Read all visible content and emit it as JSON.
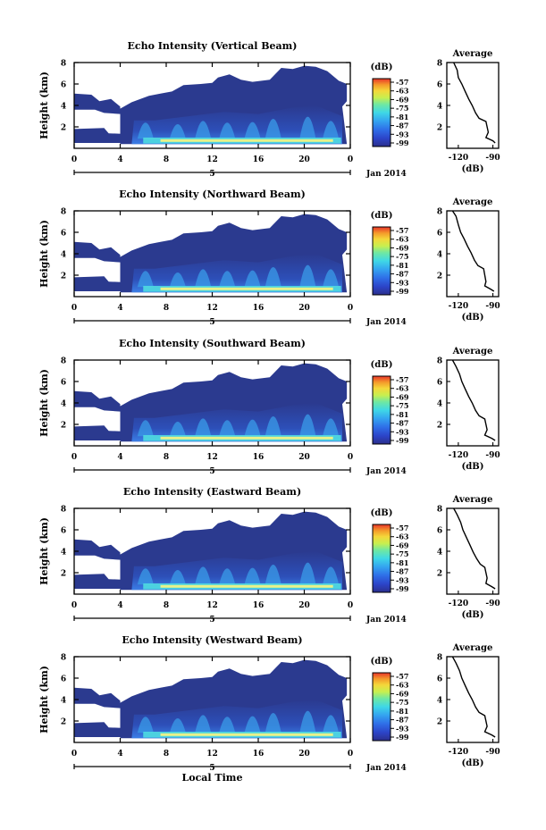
{
  "chart_data": [
    {
      "type": "heatmap",
      "title": "Echo Intensity (Vertical Beam)",
      "ylabel": "Height (km)",
      "xlim": [
        0,
        24
      ],
      "ylim": [
        0,
        8
      ],
      "xticks": [
        "0",
        "4",
        "8",
        "12",
        "16",
        "20",
        "0"
      ],
      "yticks": [
        "2",
        "4",
        "6",
        "8"
      ],
      "date_marker": "5",
      "date_label": "Jan 2014",
      "colorbar": {
        "unit": "(dB)",
        "ticks": [
          "-57",
          "-63",
          "-69",
          "-75",
          "-81",
          "-87",
          "-93",
          "-99"
        ]
      },
      "profile": {
        "title": "Average",
        "xlabel": "(dB)",
        "xticks": [
          "-120",
          "-90"
        ],
        "xlim": [
          -130,
          -85
        ],
        "points": [
          [
            -124,
            8.0
          ],
          [
            -121,
            7.3
          ],
          [
            -120,
            6.6
          ],
          [
            -117,
            6.0
          ],
          [
            -114,
            5.3
          ],
          [
            -111,
            4.6
          ],
          [
            -108,
            4.0
          ],
          [
            -105,
            3.3
          ],
          [
            -102,
            2.8
          ],
          [
            -96,
            2.5
          ],
          [
            -95,
            2.0
          ],
          [
            -94,
            1.5
          ],
          [
            -96,
            1.0
          ],
          [
            -90,
            0.7
          ],
          [
            -88,
            0.5
          ]
        ]
      }
    },
    {
      "type": "heatmap",
      "title": "Echo Intensity (Northward Beam)",
      "ylabel": "Height (km)",
      "xlim": [
        0,
        24
      ],
      "ylim": [
        0,
        8
      ],
      "xticks": [
        "0",
        "4",
        "8",
        "12",
        "16",
        "20",
        "0"
      ],
      "yticks": [
        "2",
        "4",
        "6",
        "8"
      ],
      "date_marker": "5",
      "date_label": "Jan 2014",
      "colorbar": {
        "unit": "(dB)",
        "ticks": [
          "-57",
          "-63",
          "-69",
          "-75",
          "-81",
          "-87",
          "-93",
          "-99"
        ]
      },
      "profile": {
        "title": "Average",
        "xlabel": "(dB)",
        "xticks": [
          "-120",
          "-90"
        ],
        "xlim": [
          -130,
          -85
        ],
        "points": [
          [
            -125,
            8.0
          ],
          [
            -122,
            7.5
          ],
          [
            -120,
            6.7
          ],
          [
            -118,
            6.0
          ],
          [
            -115,
            5.4
          ],
          [
            -112,
            4.7
          ],
          [
            -109,
            4.1
          ],
          [
            -106,
            3.4
          ],
          [
            -103,
            2.9
          ],
          [
            -98,
            2.6
          ],
          [
            -97,
            2.0
          ],
          [
            -96,
            1.4
          ],
          [
            -97,
            1.0
          ],
          [
            -92,
            0.7
          ],
          [
            -89,
            0.5
          ]
        ]
      }
    },
    {
      "type": "heatmap",
      "title": "Echo Intensity (Southward Beam)",
      "ylabel": "Height (km)",
      "xlim": [
        0,
        24
      ],
      "ylim": [
        0,
        8
      ],
      "xticks": [
        "0",
        "4",
        "8",
        "12",
        "16",
        "20",
        "0"
      ],
      "yticks": [
        "2",
        "4",
        "6",
        "8"
      ],
      "date_marker": "5",
      "date_label": "Jan 2014",
      "colorbar": {
        "unit": "(dB)",
        "ticks": [
          "-57",
          "-63",
          "-69",
          "-75",
          "-81",
          "-87",
          "-93",
          "-99"
        ]
      },
      "profile": {
        "title": "Average",
        "xlabel": "(dB)",
        "xticks": [
          "-120",
          "-90"
        ],
        "xlim": [
          -130,
          -85
        ],
        "points": [
          [
            -125,
            8.0
          ],
          [
            -122,
            7.4
          ],
          [
            -119,
            6.7
          ],
          [
            -117,
            6.0
          ],
          [
            -114,
            5.3
          ],
          [
            -111,
            4.6
          ],
          [
            -108,
            4.0
          ],
          [
            -105,
            3.3
          ],
          [
            -102,
            2.8
          ],
          [
            -97,
            2.5
          ],
          [
            -96,
            2.0
          ],
          [
            -95,
            1.5
          ],
          [
            -97,
            1.0
          ],
          [
            -91,
            0.7
          ],
          [
            -88,
            0.5
          ]
        ]
      }
    },
    {
      "type": "heatmap",
      "title": "Echo Intensity (Eastward Beam)",
      "ylabel": "Height (km)",
      "xlim": [
        0,
        24
      ],
      "ylim": [
        0,
        8
      ],
      "xticks": [
        "0",
        "4",
        "8",
        "12",
        "16",
        "20",
        "0"
      ],
      "yticks": [
        "2",
        "4",
        "6",
        "8"
      ],
      "date_marker": "5",
      "date_label": "Jan 2014",
      "colorbar": {
        "unit": "(dB)",
        "ticks": [
          "-57",
          "-63",
          "-69",
          "-75",
          "-81",
          "-87",
          "-93",
          "-99"
        ]
      },
      "profile": {
        "title": "Average",
        "xlabel": "(dB)",
        "xticks": [
          "-120",
          "-90"
        ],
        "xlim": [
          -130,
          -85
        ],
        "points": [
          [
            -124,
            8.0
          ],
          [
            -121,
            7.4
          ],
          [
            -118,
            6.7
          ],
          [
            -116,
            6.0
          ],
          [
            -113,
            5.3
          ],
          [
            -110,
            4.6
          ],
          [
            -107,
            3.9
          ],
          [
            -104,
            3.3
          ],
          [
            -101,
            2.8
          ],
          [
            -97,
            2.5
          ],
          [
            -96,
            2.0
          ],
          [
            -95,
            1.5
          ],
          [
            -96,
            1.0
          ],
          [
            -91,
            0.7
          ],
          [
            -88,
            0.5
          ]
        ]
      }
    },
    {
      "type": "heatmap",
      "title": "Echo Intensity (Westward Beam)",
      "ylabel": "Height (km)",
      "xlabel": "Local Time",
      "xlim": [
        0,
        24
      ],
      "ylim": [
        0,
        8
      ],
      "xticks": [
        "0",
        "4",
        "8",
        "12",
        "16",
        "20",
        "0"
      ],
      "yticks": [
        "2",
        "4",
        "6",
        "8"
      ],
      "date_marker": "5",
      "date_label": "Jan 2014",
      "colorbar": {
        "unit": "(dB)",
        "ticks": [
          "-57",
          "-63",
          "-69",
          "-75",
          "-81",
          "-87",
          "-93",
          "-99"
        ]
      },
      "profile": {
        "title": "Average",
        "xlabel": "(dB)",
        "xticks": [
          "-120",
          "-90"
        ],
        "xlim": [
          -130,
          -85
        ],
        "points": [
          [
            -125,
            8.0
          ],
          [
            -122,
            7.4
          ],
          [
            -119,
            6.7
          ],
          [
            -117,
            6.0
          ],
          [
            -114,
            5.3
          ],
          [
            -111,
            4.6
          ],
          [
            -108,
            4.0
          ],
          [
            -105,
            3.3
          ],
          [
            -102,
            2.8
          ],
          [
            -97,
            2.5
          ],
          [
            -96,
            2.0
          ],
          [
            -95,
            1.5
          ],
          [
            -97,
            1.0
          ],
          [
            -91,
            0.7
          ],
          [
            -88,
            0.5
          ]
        ]
      }
    }
  ]
}
